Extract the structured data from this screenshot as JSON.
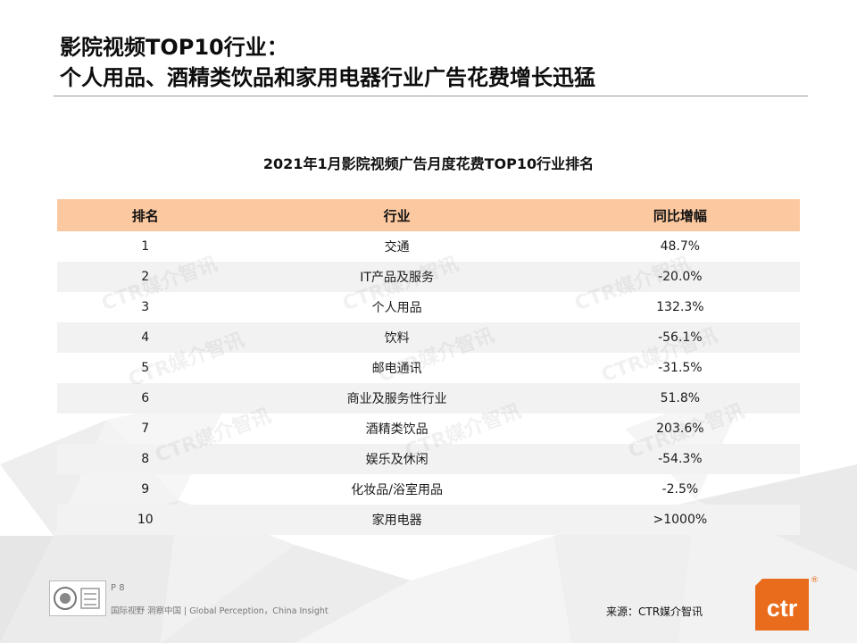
{
  "title": {
    "line1": "影院视频TOP10行业：",
    "line2": "个人用品、酒精类饮品和家用电器行业广告花费增长迅猛"
  },
  "table": {
    "title": "2021年1月影院视频广告月度花费TOP10行业排名",
    "headers": {
      "rank": "排名",
      "industry": "行业",
      "yoy": "同比增幅"
    },
    "rows": [
      {
        "rank": "1",
        "industry": "交通",
        "yoy": "48.7%"
      },
      {
        "rank": "2",
        "industry": "IT产品及服务",
        "yoy": "-20.0%"
      },
      {
        "rank": "3",
        "industry": "个人用品",
        "yoy": "132.3%"
      },
      {
        "rank": "4",
        "industry": "饮料",
        "yoy": "-56.1%"
      },
      {
        "rank": "5",
        "industry": "邮电通讯",
        "yoy": "-31.5%"
      },
      {
        "rank": "6",
        "industry": "商业及服务性行业",
        "yoy": "51.8%"
      },
      {
        "rank": "7",
        "industry": "酒精类饮品",
        "yoy": "203.6%"
      },
      {
        "rank": "8",
        "industry": "娱乐及休闲",
        "yoy": "-54.3%"
      },
      {
        "rank": "9",
        "industry": "化妆品/浴室用品",
        "yoy": "-2.5%"
      },
      {
        "rank": "10",
        "industry": "家用电器",
        "yoy": ">1000%"
      }
    ]
  },
  "watermark": "CTR媒介智讯",
  "footer": {
    "page": "P 8",
    "slogan": "国际视野 洞察中国 | Global Perception，China Insight",
    "source": "来源：CTR媒介智讯",
    "logo_text": "ctr",
    "reg_mark": "®"
  },
  "colors": {
    "header_bg": "#fcc8a0",
    "stripe_bg": "#f2f2f2",
    "brand_orange": "#e86c1c"
  },
  "icons": [
    "certification-badge-icon",
    "ctr-logo-icon"
  ]
}
